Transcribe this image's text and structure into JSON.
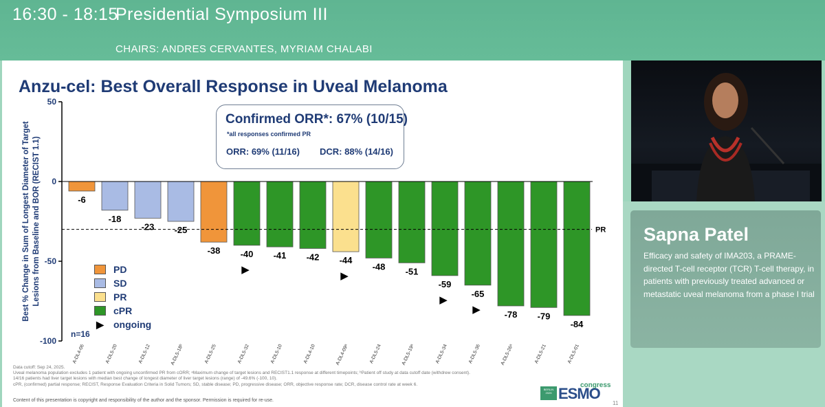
{
  "header": {
    "time": "16:30 - 18:15",
    "title": "Presidential Symposium III",
    "chairs": "CHAIRS: ANDRES CERVANTES, MYRIAM CHALABI"
  },
  "slide": {
    "title": "Anzu-cel: Best Overall Response in Uveal Melanoma",
    "callout": {
      "headline": "Confirmed ORR*: 67% (10/15)",
      "footnote": "*all responses confirmed PR",
      "orr": "ORR: 69% (11/16)",
      "dcr": "DCR: 88% (14/16)"
    },
    "footnotes": [
      "Data cutoff: Sep 24, 2025.",
      "Uveal melanoma population excludes 1 patient with ongoing unconfirmed PR from cORR; ᵃMaximum change of target lesions and RECIST1.1 response at different timepoints; ᵇPatient off study at data cutoff date (withdrew consent).",
      "14/16 patients had liver target lesions with median best change of longest diameter of liver target lesions (range) of -49.6% (-100, 10).",
      "cPR, (confirmed) partial response; RECIST, Response Evaluation Criteria in Solid Tumors; SD, stable disease; PD, progressive disease; ORR, objective response rate; DCR, disease control rate at week 6."
    ],
    "copyright": "Content of this presentation is copyright and responsibility of the author and the sponsor. Permission is required for re-use.",
    "logo": {
      "word": "ESMO",
      "tag": "congress",
      "box_line1": "BERLIN",
      "box_line2": "2025"
    },
    "page_number": "11"
  },
  "chart_data": {
    "type": "bar",
    "title": "Anzu-cel: Best Overall Response in Uveal Melanoma",
    "ylabel_lines": [
      "Best % Change in Sum of Longest Diameter of Target",
      "Lesions from Baseline and BOR (RECIST 1.1)"
    ],
    "xlabel": "",
    "ylim": [
      -100,
      50
    ],
    "yticks": [
      50,
      0,
      -50,
      -100
    ],
    "reference_line": {
      "value": -30,
      "label": "PR"
    },
    "n_label": "n=16",
    "categories": [
      "A-DL4-06",
      "A-DL5-20",
      "A-DL5-12",
      "A-DL5-18ᵇ",
      "A-DL5-25",
      "A-DL5-32",
      "A-DL5-10",
      "A-DL4-10",
      "A-DL4-09ᵃ",
      "A-DL5-24",
      "A-DL5-19ᵃ",
      "A-DL5-34",
      "A-DL5-36",
      "A-DL5-26ᵃ",
      "A-DL5-21",
      "A-DL5-01"
    ],
    "values": [
      -6,
      -18,
      -23,
      -25,
      -38,
      -40,
      -41,
      -42,
      -44,
      -48,
      -51,
      -59,
      -65,
      -78,
      -79,
      -84
    ],
    "value_labels": [
      "-6",
      "-18",
      "-23",
      "-25",
      "-38",
      "-40",
      "-41",
      "-42",
      "-44",
      "-48",
      "-51",
      "-59",
      "-65",
      "-78",
      "-79",
      "-84"
    ],
    "response": [
      "PD",
      "SD",
      "SD",
      "SD",
      "PD",
      "cPR",
      "cPR",
      "cPR",
      "PR",
      "cPR",
      "cPR",
      "cPR",
      "cPR",
      "cPR",
      "cPR",
      "cPR"
    ],
    "ongoing": [
      false,
      false,
      false,
      false,
      false,
      true,
      false,
      false,
      true,
      false,
      false,
      true,
      true,
      false,
      false,
      false
    ],
    "legend": [
      {
        "label": "PD",
        "color": "#f0953a"
      },
      {
        "label": "SD",
        "color": "#a9bbe4"
      },
      {
        "label": "PR",
        "color": "#fbe08e"
      },
      {
        "label": "cPR",
        "color": "#2e9627"
      }
    ],
    "ongoing_label": "ongoing",
    "ongoing_symbol": "▶"
  },
  "speaker": {
    "name": "Sapna Patel",
    "talk_title": "Efficacy and safety of IMA203, a PRAME-directed T-cell receptor (TCR) T-cell therapy, in patients with previously treated advanced or metastatic uveal melanoma from a phase I trial"
  },
  "colors": {
    "header_bg": "#62b895",
    "title_blue": "#1f3b75",
    "card_bg": "#84ad9c"
  }
}
